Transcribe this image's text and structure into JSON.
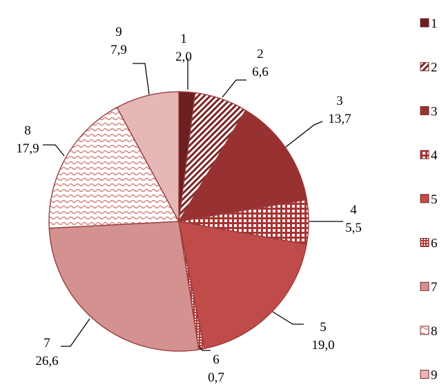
{
  "chart_data": {
    "type": "pie",
    "categories": [
      "1",
      "2",
      "3",
      "4",
      "5",
      "6",
      "7",
      "8",
      "9"
    ],
    "values": [
      2.0,
      6.6,
      13.7,
      5.5,
      19.0,
      0.7,
      26.6,
      17.9,
      7.9
    ],
    "value_labels": [
      "2,0",
      "6,6",
      "13,7",
      "5,5",
      "19,0",
      "0,7",
      "26,6",
      "17,9",
      "7,9"
    ],
    "colors": [
      "#6b1f1f",
      "#7a2626",
      "#983232",
      "#a83434",
      "#c04c4a",
      "#b83a3a",
      "#d39290",
      "#d58482",
      "#e6b7b7"
    ],
    "fills": [
      "solid",
      "diagonal-stripes",
      "solid",
      "grid",
      "solid",
      "plaid",
      "solid",
      "wave",
      "solid"
    ],
    "start_angle_deg": 0,
    "direction": "clockwise",
    "legend_position": "right"
  }
}
